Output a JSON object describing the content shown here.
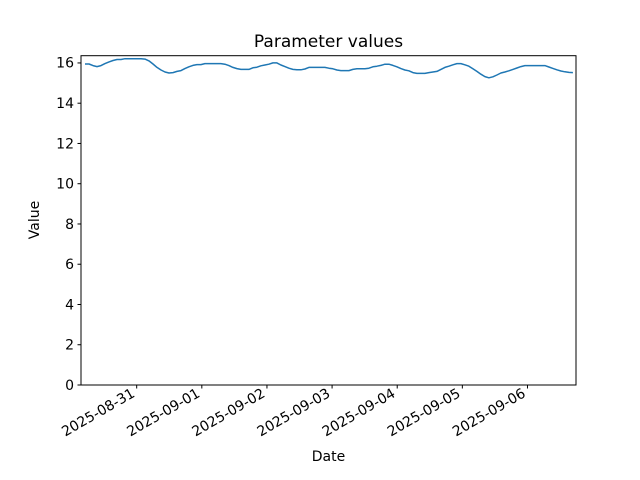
{
  "figure": {
    "background": "#ffffff"
  },
  "chart_data": {
    "type": "line",
    "title": "Parameter values",
    "xlabel": "Date",
    "ylabel": "Value",
    "x_tick_labels": [
      "2025-08-31",
      "2025-09-01",
      "2025-09-02",
      "2025-09-03",
      "2025-09-04",
      "2025-09-05",
      "2025-09-06"
    ],
    "x_tick_days": [
      0,
      1,
      2,
      3,
      4,
      5,
      6
    ],
    "y_ticks": [
      0,
      2,
      4,
      6,
      8,
      10,
      12,
      14,
      16
    ],
    "xlim_days": [
      -0.855,
      6.745
    ],
    "ylim": [
      0,
      16.36
    ],
    "grid": false,
    "legend_position": "none",
    "line_color": "#1f77b4",
    "axis_color": "#000000",
    "series": [
      {
        "x_reference": "days from 2025-08-31",
        "x_day_start": -0.794,
        "x_day_step": 0.0614,
        "values": [
          15.95,
          15.95,
          15.87,
          15.82,
          15.87,
          15.97,
          16.05,
          16.12,
          16.17,
          16.17,
          16.21,
          16.21,
          16.21,
          16.21,
          16.21,
          16.19,
          16.1,
          15.95,
          15.78,
          15.65,
          15.55,
          15.5,
          15.52,
          15.58,
          15.62,
          15.72,
          15.81,
          15.88,
          15.92,
          15.92,
          15.97,
          15.97,
          15.97,
          15.97,
          15.97,
          15.94,
          15.87,
          15.78,
          15.72,
          15.68,
          15.68,
          15.68,
          15.76,
          15.79,
          15.86,
          15.9,
          15.94,
          16.0,
          16.0,
          15.9,
          15.82,
          15.74,
          15.68,
          15.66,
          15.66,
          15.7,
          15.78,
          15.78,
          15.78,
          15.78,
          15.78,
          15.74,
          15.71,
          15.65,
          15.62,
          15.62,
          15.62,
          15.68,
          15.71,
          15.71,
          15.71,
          15.74,
          15.81,
          15.84,
          15.88,
          15.94,
          15.94,
          15.88,
          15.81,
          15.72,
          15.65,
          15.61,
          15.52,
          15.48,
          15.48,
          15.48,
          15.52,
          15.55,
          15.58,
          15.68,
          15.78,
          15.84,
          15.91,
          15.97,
          15.97,
          15.91,
          15.84,
          15.71,
          15.58,
          15.44,
          15.32,
          15.26,
          15.31,
          15.4,
          15.5,
          15.55,
          15.61,
          15.68,
          15.75,
          15.82,
          15.87,
          15.87,
          15.87,
          15.87,
          15.87,
          15.87,
          15.8,
          15.73,
          15.66,
          15.6,
          15.56,
          15.53,
          15.52
        ]
      }
    ]
  }
}
